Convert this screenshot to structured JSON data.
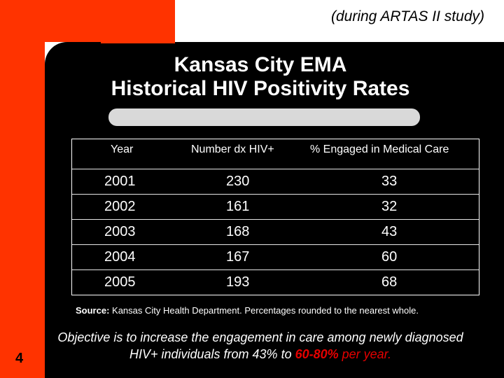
{
  "slide": {
    "subtitle": "(during ARTAS II study)",
    "title_line1": "Kansas City EMA",
    "title_line2": "Historical HIV Positivity Rates",
    "page_number": "4"
  },
  "table": {
    "headers": [
      "Year",
      "Number dx HIV+",
      "% Engaged in Medical Care"
    ],
    "rows": [
      {
        "year": "2001",
        "number": "230",
        "percent": "33"
      },
      {
        "year": "2002",
        "number": "161",
        "percent": "32"
      },
      {
        "year": "2003",
        "number": "168",
        "percent": "43"
      },
      {
        "year": "2004",
        "number": "167",
        "percent": "60"
      },
      {
        "year": "2005",
        "number": "193",
        "percent": "68"
      }
    ]
  },
  "source": {
    "label": "Source:",
    "text": "Kansas City Health Department.  Percentages rounded to the nearest whole."
  },
  "objective": {
    "part1": "Objective is to increase the engagement in care among newly diagnosed HIV+ individuals from 43% to ",
    "highlight": "60-80%",
    "part2": " per year."
  },
  "colors": {
    "accent_orange": "#ff3300",
    "highlight_red": "#e60000",
    "background": "#000000"
  }
}
